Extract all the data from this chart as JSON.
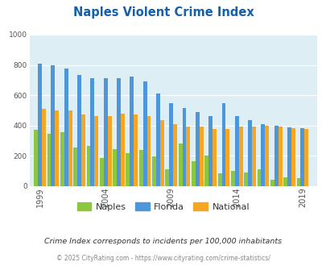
{
  "title": "Naples Violent Crime Index",
  "title_color": "#1560ac",
  "subtitle": "Crime Index corresponds to incidents per 100,000 inhabitants",
  "subtitle_color": "#333333",
  "footer": "© 2025 CityRating.com - https://www.cityrating.com/crime-statistics/",
  "footer_color": "#888888",
  "years": [
    1999,
    2000,
    2001,
    2002,
    2003,
    2004,
    2005,
    2006,
    2007,
    2008,
    2009,
    2010,
    2011,
    2012,
    2013,
    2014,
    2015,
    2016,
    2017,
    2018,
    2019
  ],
  "naples": [
    370,
    345,
    355,
    255,
    265,
    185,
    245,
    220,
    240,
    195,
    110,
    280,
    165,
    200,
    85,
    100,
    90,
    110,
    40,
    60,
    55
  ],
  "florida": [
    810,
    800,
    775,
    735,
    715,
    710,
    715,
    725,
    690,
    610,
    545,
    515,
    490,
    460,
    545,
    465,
    435,
    410,
    400,
    390,
    385
  ],
  "national": [
    510,
    500,
    500,
    475,
    465,
    465,
    480,
    475,
    460,
    435,
    410,
    395,
    395,
    375,
    380,
    395,
    395,
    400,
    395,
    385,
    380
  ],
  "naples_color": "#8dc63f",
  "florida_color": "#4d96d9",
  "national_color": "#f5a623",
  "plot_bg_color": "#deeef5",
  "ylim": [
    0,
    1000
  ],
  "yticks": [
    0,
    200,
    400,
    600,
    800,
    1000
  ],
  "xtick_labels": [
    "1999",
    "2004",
    "2009",
    "2014",
    "2019"
  ],
  "xtick_positions": [
    1999,
    2004,
    2009,
    2014,
    2019
  ]
}
